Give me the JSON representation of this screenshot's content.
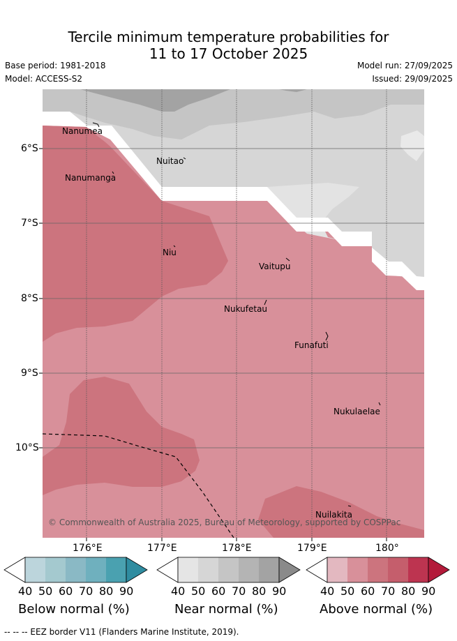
{
  "title": {
    "line1": "Tercile minimum temperature probabilities for",
    "line2": "11 to 17 October 2025"
  },
  "meta": {
    "base_period": "Base period: 1981-2018",
    "model": "Model: ACCESS-S2",
    "model_run": "Model run: 27/09/2025",
    "issued": "Issued: 29/09/2025"
  },
  "map": {
    "x_ticks": [
      "176°E",
      "177°E",
      "178°E",
      "179°E",
      "180°"
    ],
    "y_ticks": [
      "6°S",
      "7°S",
      "8°S",
      "9°S",
      "10°S"
    ],
    "places": [
      "Nanumea",
      "Nuitao",
      "Nanumanga",
      "Niu",
      "Vaitupu",
      "Nukufetau",
      "Funafuti",
      "Nukulaelae",
      "Nuilakita"
    ],
    "copyright": "© Commonwealth of Australia 2025, Bureau of Meteorology, supported by COSPPac"
  },
  "colorbars": [
    {
      "label": "Below normal (%)",
      "ticks": [
        "40",
        "50",
        "60",
        "70",
        "80",
        "90"
      ],
      "colors": [
        "#ffffff",
        "#bcd5dc",
        "#a4c9cf",
        "#8ab9c5",
        "#6fb0be",
        "#4aa1b0",
        "#2f8ca0"
      ]
    },
    {
      "label": "Near normal (%)",
      "ticks": [
        "40",
        "50",
        "60",
        "70",
        "80",
        "90"
      ],
      "colors": [
        "#ffffff",
        "#e5e5e5",
        "#d6d6d6",
        "#c5c5c5",
        "#b4b4b4",
        "#a3a3a3",
        "#8a8a8a"
      ]
    },
    {
      "label": "Above normal (%)",
      "ticks": [
        "40",
        "50",
        "60",
        "70",
        "80",
        "90"
      ],
      "colors": [
        "#ffffff",
        "#e3b8c0",
        "#d8909a",
        "#cc747e",
        "#c55e6c",
        "#bd3450",
        "#b31a3a"
      ]
    }
  ],
  "footer": "-- -- -- EEZ border V11 (Flanders Marine Institute, 2019)."
}
